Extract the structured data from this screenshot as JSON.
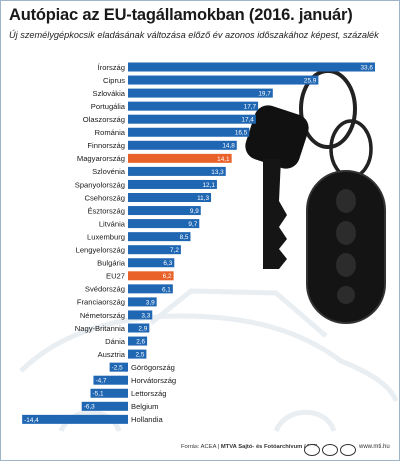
{
  "title": "Autópiac az EU-tagállamokban (2016. január)",
  "subtitle": "Új személygépkocsik eladásának változása előző év azonos időszakához képest, százalék",
  "footer": {
    "source_prefix": "Forrás: ACEA | ",
    "source_bold": "MTVA Sajtó- és Fotóarchívum / MTI",
    "site": "www.mti.hu"
  },
  "colors": {
    "bar": "#1f66b3",
    "highlight": "#e8622a",
    "label_text": "#1a1a1a",
    "value_text": "#ffffff",
    "background": "#ffffff"
  },
  "decor": {
    "illustration": "car-key-with-remote-fob",
    "background": "faint-car-outline"
  },
  "chart_data": {
    "type": "bar",
    "orientation": "horizontal",
    "title": "Autópiac az EU-tagállamokban (2016. január)",
    "subtitle": "Új személygépkocsik eladásának változása előző év azonos időszakához képest, százalék",
    "xlim": [
      -14.4,
      33.6
    ],
    "categories": [
      "Írország",
      "Ciprus",
      "Szlovákia",
      "Portugália",
      "Olaszország",
      "Románia",
      "Finnország",
      "Magyarország",
      "Szlovénia",
      "Spanyolország",
      "Csehország",
      "Észtország",
      "Litvánia",
      "Luxemburg",
      "Lengyelország",
      "Bulgária",
      "EU27",
      "Svédország",
      "Franciaország",
      "Németország",
      "Nagy-Britannia",
      "Dánia",
      "Ausztria",
      "Görögország",
      "Horvátország",
      "Lettország",
      "Belgium",
      "Hollandia"
    ],
    "value_labels": [
      "33,6",
      "25,9",
      "19,7",
      "17,7",
      "17,4",
      "16,5",
      "14,8",
      "14,1",
      "13,3",
      "12,1",
      "11,3",
      "9,9",
      "9,7",
      "8,5",
      "7,2",
      "6,3",
      "6,2",
      "6,1",
      "3,9",
      "3,3",
      "2,9",
      "2,6",
      "2,5",
      "-2,5",
      "-4,7",
      "-5,1",
      "-6,3",
      "-14,4"
    ],
    "values": [
      33.6,
      25.9,
      19.7,
      17.7,
      17.4,
      16.5,
      14.8,
      14.1,
      13.3,
      12.1,
      11.3,
      9.9,
      9.7,
      8.5,
      7.2,
      6.3,
      6.2,
      6.1,
      3.9,
      3.3,
      2.9,
      2.6,
      2.5,
      -2.5,
      -4.7,
      -5.1,
      -6.3,
      -14.4
    ],
    "highlight": [
      "Magyarország",
      "EU27"
    ],
    "grid": false,
    "legend": "none"
  }
}
